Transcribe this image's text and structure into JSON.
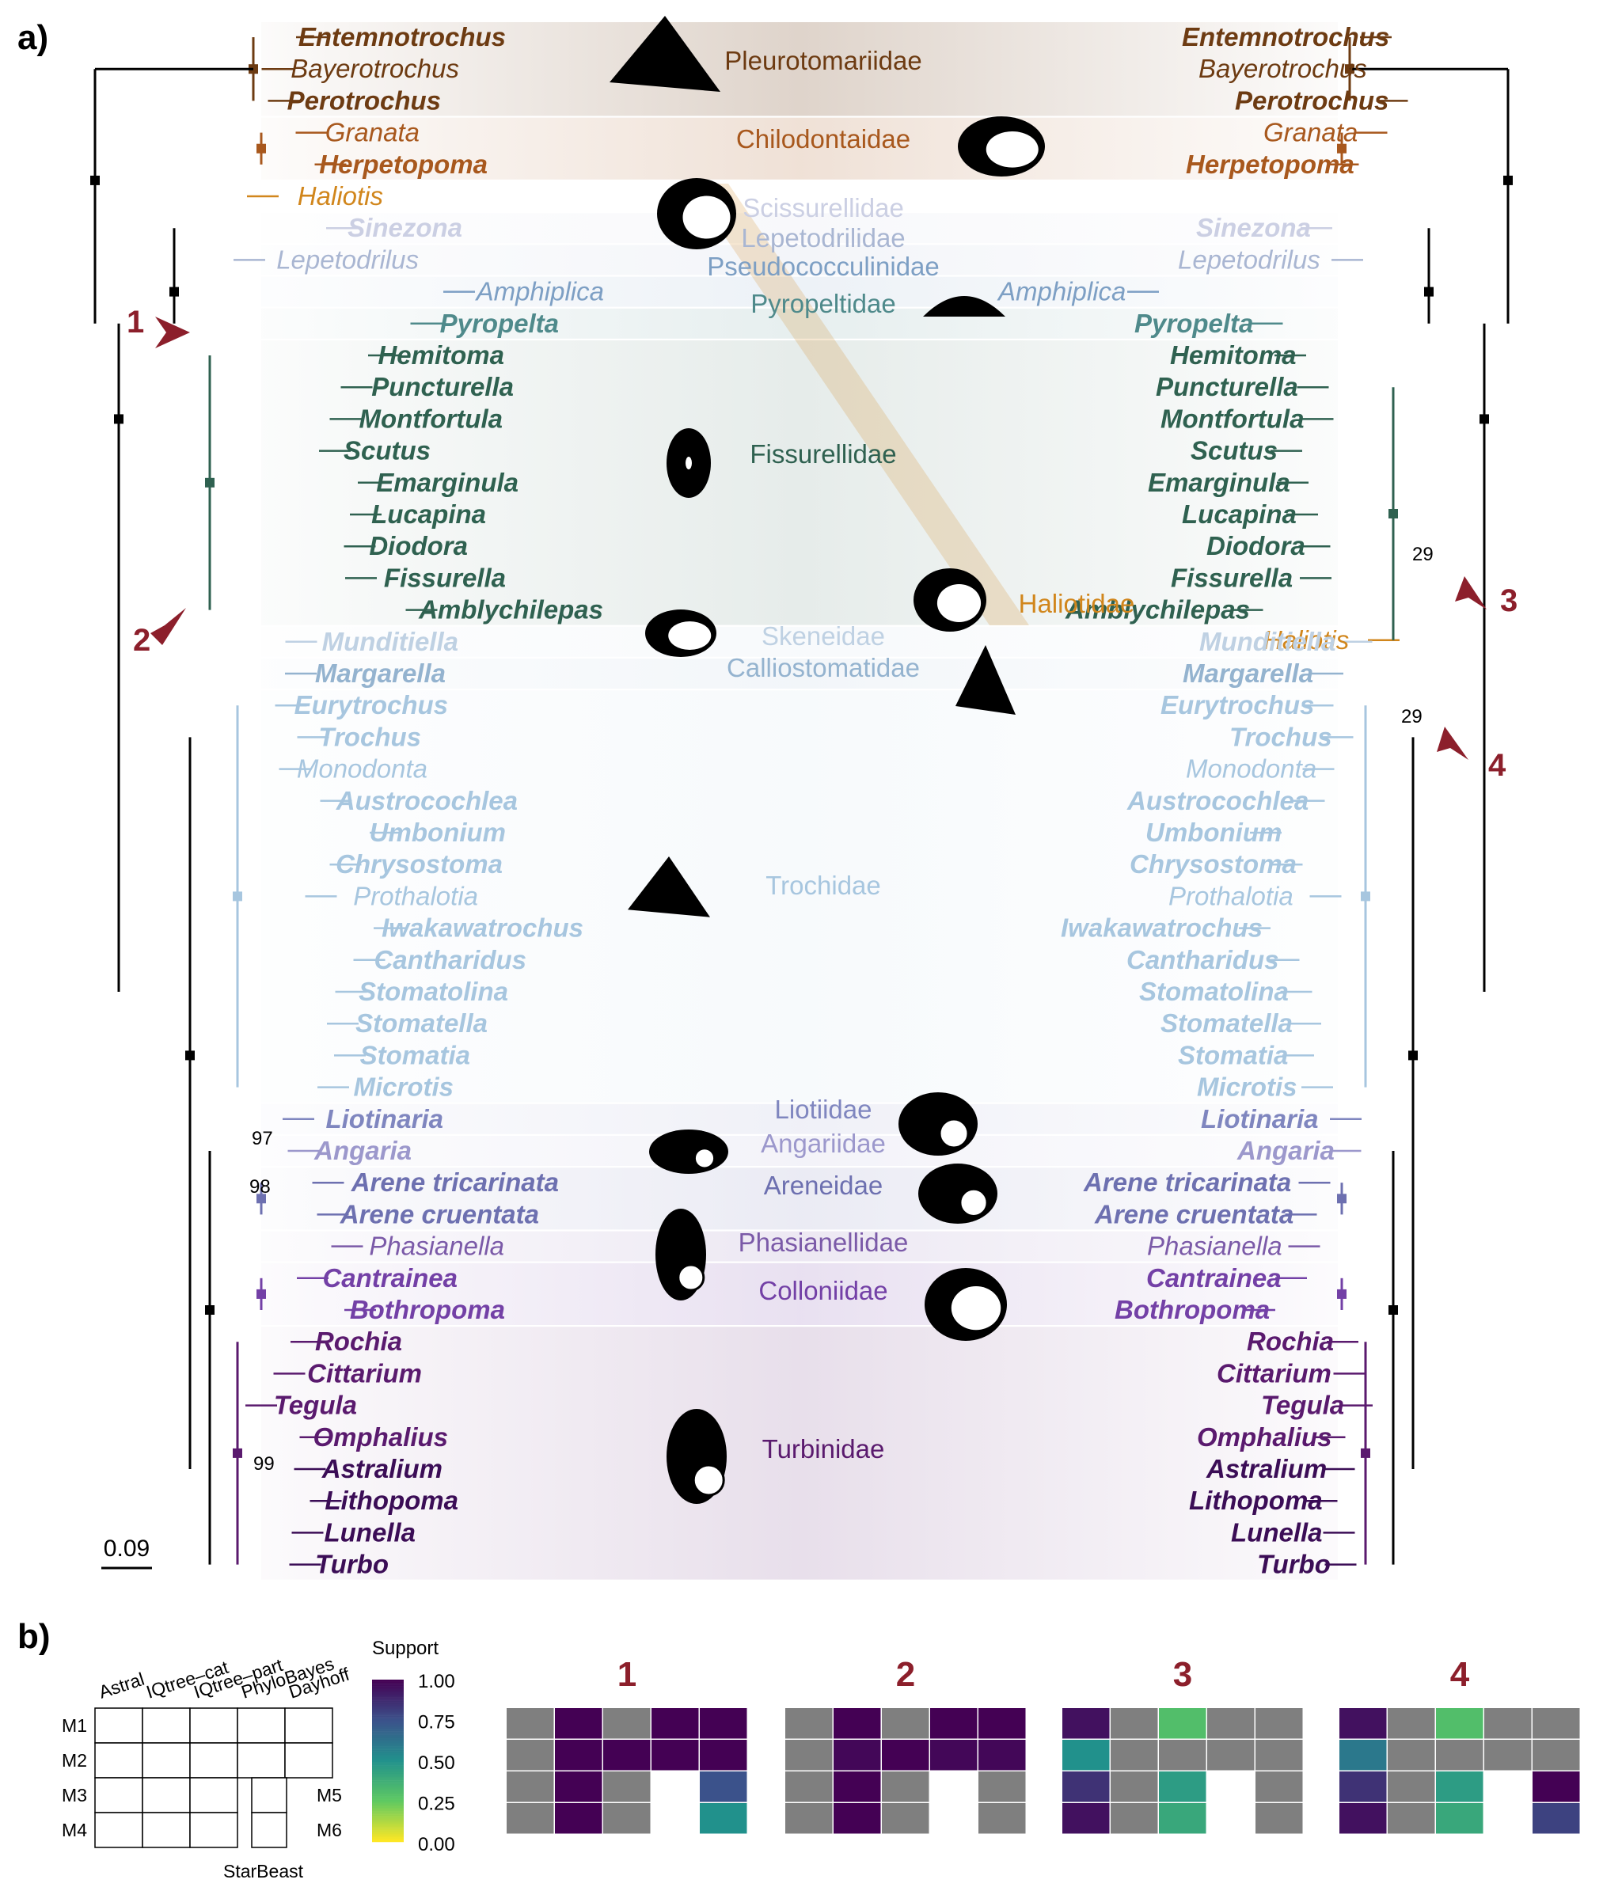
{
  "panel_labels": {
    "a": "a)",
    "b": "b)"
  },
  "scale_bar": "0.09",
  "families": [
    {
      "name": "Pleurotomariidae",
      "color": "#6d3b12"
    },
    {
      "name": "Chilodontaidae",
      "color": "#a8581d"
    },
    {
      "name": "Scissurellidae",
      "color": "#cbcfe3"
    },
    {
      "name": "Lepetodrilidae",
      "color": "#a9b6d2"
    },
    {
      "name": "Pseudococculinidae",
      "color": "#7d9fc4"
    },
    {
      "name": "Pyropeltidae",
      "color": "#4f8a8b"
    },
    {
      "name": "Fissurellidae",
      "color": "#2f6150"
    },
    {
      "name": "Haliotidae",
      "color": "#d1861c"
    },
    {
      "name": "Skeneidae",
      "color": "#bfd1e3"
    },
    {
      "name": "Calliostomatidae",
      "color": "#94b3cf"
    },
    {
      "name": "Trochidae",
      "color": "#a7c6df"
    },
    {
      "name": "Liotiidae",
      "color": "#7f86bf"
    },
    {
      "name": "Angariidae",
      "color": "#9c98cc"
    },
    {
      "name": "Areneidae",
      "color": "#6d70b0"
    },
    {
      "name": "Phasianellidae",
      "color": "#7b5aa8"
    },
    {
      "name": "Colloniidae",
      "color": "#7340a6"
    },
    {
      "name": "Turbinidae",
      "color": "#5a1a6e"
    }
  ],
  "left_taxa": [
    {
      "name": "Entemnotrochus",
      "bold": true,
      "color": "#6d3b12"
    },
    {
      "name": "Bayerotrochus",
      "bold": false,
      "color": "#6d3b12"
    },
    {
      "name": "Perotrochus",
      "bold": true,
      "color": "#6d3b12"
    },
    {
      "name": "Granata",
      "bold": false,
      "color": "#a8581d"
    },
    {
      "name": "Herpetopoma",
      "bold": true,
      "color": "#a8581d"
    },
    {
      "name": "Haliotis",
      "bold": false,
      "color": "#d1861c"
    },
    {
      "name": "Sinezona",
      "bold": true,
      "color": "#cbcfe3"
    },
    {
      "name": "Lepetodrilus",
      "bold": false,
      "color": "#a9b6d2"
    },
    {
      "name": "Amphiplica",
      "bold": false,
      "color": "#7d9fc4"
    },
    {
      "name": "Pyropelta",
      "bold": true,
      "color": "#4f8a8b"
    },
    {
      "name": "Hemitoma",
      "bold": true,
      "color": "#2f6150"
    },
    {
      "name": "Puncturella",
      "bold": true,
      "color": "#2f6150"
    },
    {
      "name": "Montfortula",
      "bold": true,
      "color": "#2f6150"
    },
    {
      "name": "Scutus",
      "bold": true,
      "color": "#2f6150"
    },
    {
      "name": "Emarginula",
      "bold": true,
      "color": "#2f6150"
    },
    {
      "name": "Lucapina",
      "bold": true,
      "color": "#2f6150"
    },
    {
      "name": "Diodora",
      "bold": true,
      "color": "#2f6150"
    },
    {
      "name": "Fissurella",
      "bold": true,
      "color": "#2f6150"
    },
    {
      "name": "Amblychilepas",
      "bold": true,
      "color": "#2f6150"
    },
    {
      "name": "Munditiella",
      "bold": true,
      "color": "#bfd1e3"
    },
    {
      "name": "Margarella",
      "bold": true,
      "color": "#94b3cf"
    },
    {
      "name": "Eurytrochus",
      "bold": true,
      "color": "#a7c6df"
    },
    {
      "name": "Trochus",
      "bold": true,
      "color": "#a7c6df"
    },
    {
      "name": "Monodonta",
      "bold": false,
      "color": "#a7c6df"
    },
    {
      "name": "Austrocochlea",
      "bold": true,
      "color": "#a7c6df"
    },
    {
      "name": "Umbonium",
      "bold": true,
      "color": "#a7c6df"
    },
    {
      "name": "Chrysostoma",
      "bold": true,
      "color": "#a7c6df"
    },
    {
      "name": "Prothalotia",
      "bold": false,
      "color": "#a7c6df"
    },
    {
      "name": "Iwakawatrochus",
      "bold": true,
      "color": "#a7c6df"
    },
    {
      "name": "Cantharidus",
      "bold": true,
      "color": "#a7c6df"
    },
    {
      "name": "Stomatolina",
      "bold": true,
      "color": "#a7c6df"
    },
    {
      "name": "Stomatella",
      "bold": true,
      "color": "#a7c6df"
    },
    {
      "name": "Stomatia",
      "bold": true,
      "color": "#a7c6df"
    },
    {
      "name": "Microtis",
      "bold": true,
      "color": "#a7c6df"
    },
    {
      "name": "Liotinaria",
      "bold": true,
      "color": "#7f86bf"
    },
    {
      "name": "Angaria",
      "bold": true,
      "color": "#9c98cc"
    },
    {
      "name": "Arene tricarinata",
      "bold": true,
      "color": "#6d70b0"
    },
    {
      "name": "Arene cruentata",
      "bold": true,
      "color": "#6d70b0"
    },
    {
      "name": "Phasianella",
      "bold": false,
      "color": "#7b5aa8"
    },
    {
      "name": "Cantrainea",
      "bold": true,
      "color": "#7340a6"
    },
    {
      "name": "Bothropoma",
      "bold": true,
      "color": "#7340a6"
    },
    {
      "name": "Rochia",
      "bold": true,
      "color": "#5a1a6e"
    },
    {
      "name": "Cittarium",
      "bold": true,
      "color": "#5a1a6e"
    },
    {
      "name": "Tegula",
      "bold": true,
      "color": "#5a1a6e"
    },
    {
      "name": "Omphalius",
      "bold": true,
      "color": "#5a1a6e"
    },
    {
      "name": "Astralium",
      "bold": true,
      "color": "#3b0d56"
    },
    {
      "name": "Lithopoma",
      "bold": true,
      "color": "#3b0d56"
    },
    {
      "name": "Lunella",
      "bold": true,
      "color": "#3b0d56"
    },
    {
      "name": "Turbo",
      "bold": true,
      "color": "#3b0d56"
    }
  ],
  "right_taxa": [
    {
      "name": "Entemnotrochus",
      "bold": true,
      "color": "#6d3b12"
    },
    {
      "name": "Bayerotrochus",
      "bold": false,
      "color": "#6d3b12"
    },
    {
      "name": "Perotrochus",
      "bold": true,
      "color": "#6d3b12"
    },
    {
      "name": "Granata",
      "bold": false,
      "color": "#a8581d"
    },
    {
      "name": "Herpetopoma",
      "bold": true,
      "color": "#a8581d"
    },
    {
      "name": "Sinezona",
      "bold": true,
      "color": "#cbcfe3"
    },
    {
      "name": "Lepetodrilus",
      "bold": false,
      "color": "#a9b6d2"
    },
    {
      "name": "Amphiplica",
      "bold": false,
      "color": "#7d9fc4"
    },
    {
      "name": "Pyropelta",
      "bold": true,
      "color": "#4f8a8b"
    },
    {
      "name": "Hemitoma",
      "bold": true,
      "color": "#2f6150"
    },
    {
      "name": "Puncturella",
      "bold": true,
      "color": "#2f6150"
    },
    {
      "name": "Montfortula",
      "bold": true,
      "color": "#2f6150"
    },
    {
      "name": "Scutus",
      "bold": true,
      "color": "#2f6150"
    },
    {
      "name": "Emarginula",
      "bold": true,
      "color": "#2f6150"
    },
    {
      "name": "Lucapina",
      "bold": true,
      "color": "#2f6150"
    },
    {
      "name": "Diodora",
      "bold": true,
      "color": "#2f6150"
    },
    {
      "name": "Fissurella",
      "bold": true,
      "color": "#2f6150"
    },
    {
      "name": "Amblychilepas",
      "bold": true,
      "color": "#2f6150"
    },
    {
      "name": "Haliotis",
      "bold": false,
      "color": "#d1861c"
    },
    {
      "name": "Munditiella",
      "bold": true,
      "color": "#bfd1e3"
    },
    {
      "name": "Margarella",
      "bold": true,
      "color": "#94b3cf"
    },
    {
      "name": "Eurytrochus",
      "bold": true,
      "color": "#a7c6df"
    },
    {
      "name": "Trochus",
      "bold": true,
      "color": "#a7c6df"
    },
    {
      "name": "Monodonta",
      "bold": false,
      "color": "#a7c6df"
    },
    {
      "name": "Austrocochlea",
      "bold": true,
      "color": "#a7c6df"
    },
    {
      "name": "Umbonium",
      "bold": true,
      "color": "#a7c6df"
    },
    {
      "name": "Chrysostoma",
      "bold": true,
      "color": "#a7c6df"
    },
    {
      "name": "Prothalotia",
      "bold": false,
      "color": "#a7c6df"
    },
    {
      "name": "Iwakawatrochus",
      "bold": true,
      "color": "#a7c6df"
    },
    {
      "name": "Cantharidus",
      "bold": true,
      "color": "#a7c6df"
    },
    {
      "name": "Stomatolina",
      "bold": true,
      "color": "#a7c6df"
    },
    {
      "name": "Stomatella",
      "bold": true,
      "color": "#a7c6df"
    },
    {
      "name": "Stomatia",
      "bold": true,
      "color": "#a7c6df"
    },
    {
      "name": "Microtis",
      "bold": true,
      "color": "#a7c6df"
    },
    {
      "name": "Liotinaria",
      "bold": true,
      "color": "#7f86bf"
    },
    {
      "name": "Angaria",
      "bold": true,
      "color": "#9c98cc"
    },
    {
      "name": "Arene tricarinata",
      "bold": true,
      "color": "#6d70b0"
    },
    {
      "name": "Arene cruentata",
      "bold": true,
      "color": "#6d70b0"
    },
    {
      "name": "Phasianella",
      "bold": false,
      "color": "#7b5aa8"
    },
    {
      "name": "Cantrainea",
      "bold": true,
      "color": "#7340a6"
    },
    {
      "name": "Bothropoma",
      "bold": true,
      "color": "#7340a6"
    },
    {
      "name": "Rochia",
      "bold": true,
      "color": "#5a1a6e"
    },
    {
      "name": "Cittarium",
      "bold": true,
      "color": "#5a1a6e"
    },
    {
      "name": "Tegula",
      "bold": true,
      "color": "#5a1a6e"
    },
    {
      "name": "Omphalius",
      "bold": true,
      "color": "#5a1a6e"
    },
    {
      "name": "Astralium",
      "bold": true,
      "color": "#3b0d56"
    },
    {
      "name": "Lithopoma",
      "bold": true,
      "color": "#3b0d56"
    },
    {
      "name": "Lunella",
      "bold": true,
      "color": "#3b0d56"
    },
    {
      "name": "Turbo",
      "bold": true,
      "color": "#3b0d56"
    }
  ],
  "node_support_labels": [
    "97",
    "98",
    "99",
    "29",
    "29"
  ],
  "arrow_labels": [
    "1",
    "2",
    "3",
    "4"
  ],
  "legend": {
    "methods": [
      "Astral",
      "IQtree–cat",
      "IQtree–part",
      "PhyloBayes",
      "Dayhoff"
    ],
    "rows": [
      "M1",
      "M2",
      "M3",
      "M4"
    ],
    "extra_rows": [
      "M5",
      "M6"
    ],
    "starbeast": "StarBeast",
    "colorbar_title": "Support",
    "colorbar_ticks": [
      "1.00",
      "0.75",
      "0.50",
      "0.25",
      "0.00"
    ]
  },
  "heatmaps": [
    {
      "label": "1",
      "grid": [
        [
          null,
          1.0,
          null,
          1.0,
          1.0
        ],
        [
          null,
          1.0,
          1.0,
          1.0,
          1.0
        ],
        [
          null,
          1.0,
          null,
          "blank",
          0.75
        ],
        [
          null,
          1.0,
          null,
          "blank",
          0.5
        ]
      ]
    },
    {
      "label": "2",
      "grid": [
        [
          null,
          1.0,
          null,
          1.0,
          1.0
        ],
        [
          null,
          0.98,
          1.0,
          0.98,
          0.98
        ],
        [
          null,
          1.0,
          null,
          "blank",
          null
        ],
        [
          null,
          1.0,
          null,
          "blank",
          null
        ]
      ]
    },
    {
      "label": "3",
      "grid": [
        [
          0.95,
          null,
          0.3,
          null,
          null
        ],
        [
          0.5,
          null,
          null,
          null,
          null
        ],
        [
          0.85,
          null,
          0.45,
          "blank",
          null
        ],
        [
          0.95,
          null,
          0.4,
          "blank",
          null
        ]
      ]
    },
    {
      "label": "4",
      "grid": [
        [
          0.95,
          null,
          0.3,
          null,
          null
        ],
        [
          0.6,
          null,
          null,
          null,
          null
        ],
        [
          0.85,
          null,
          0.45,
          "blank",
          1.0
        ],
        [
          0.95,
          null,
          0.4,
          "blank",
          0.8
        ]
      ]
    }
  ]
}
